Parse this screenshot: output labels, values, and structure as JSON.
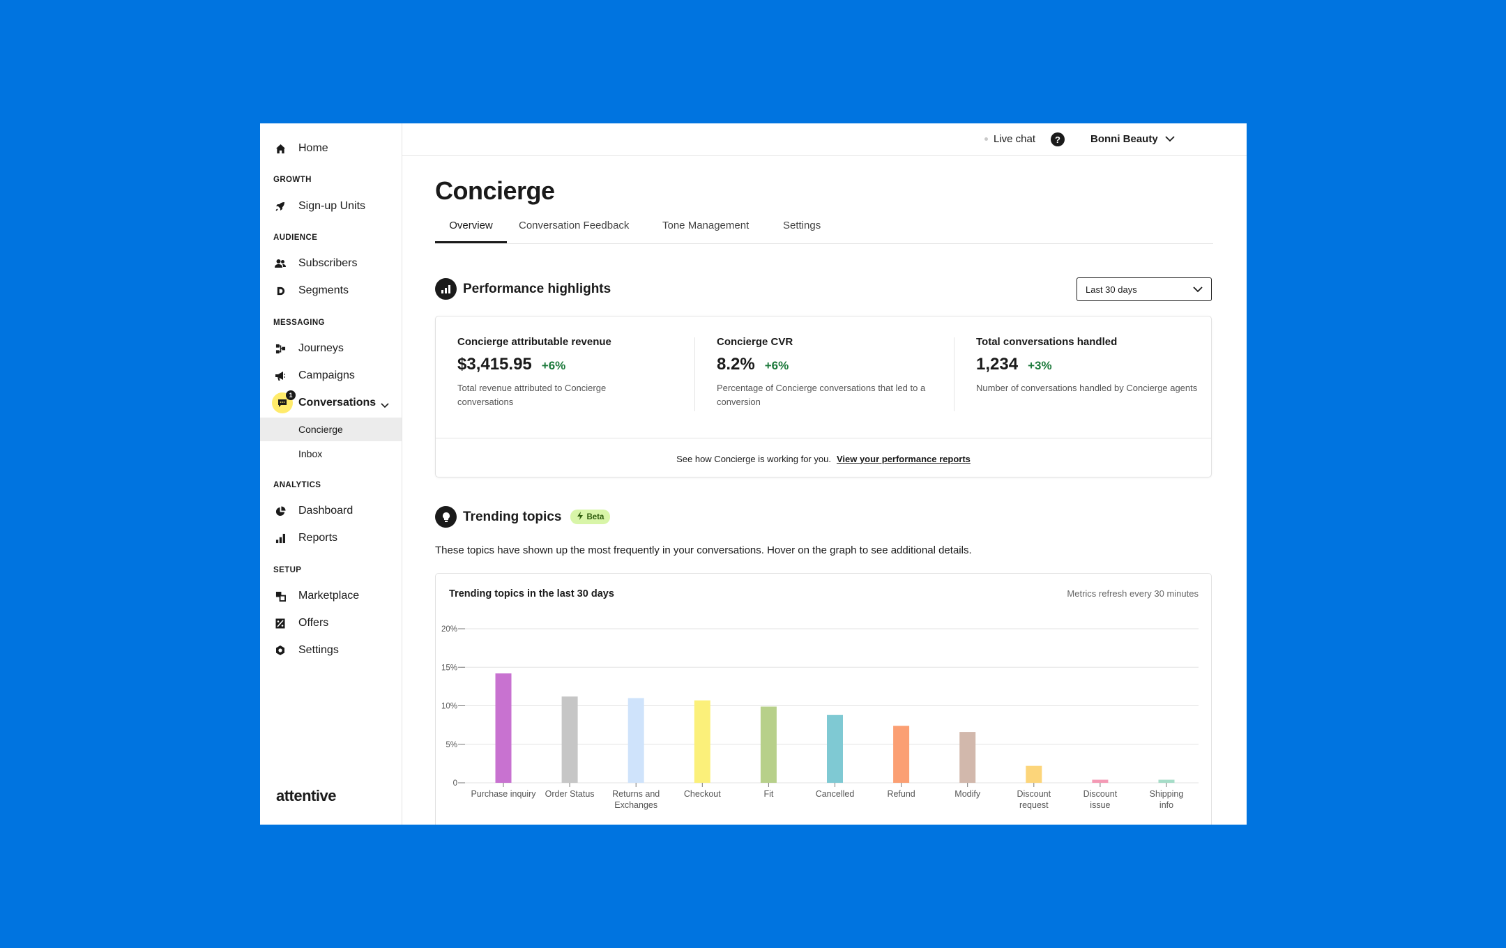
{
  "sidebar": {
    "home": "Home",
    "sections": {
      "growth": "GROWTH",
      "audience": "AUDIENCE",
      "messaging": "MESSAGING",
      "analytics": "ANALYTICS",
      "setup": "SETUP"
    },
    "items": {
      "signup_units": "Sign-up Units",
      "subscribers": "Subscribers",
      "segments": "Segments",
      "journeys": "Journeys",
      "campaigns": "Campaigns",
      "conversations": "Conversations",
      "conversations_badge": "1",
      "concierge": "Concierge",
      "inbox": "Inbox",
      "dashboard": "Dashboard",
      "reports": "Reports",
      "marketplace": "Marketplace",
      "offers": "Offers",
      "settings": "Settings"
    },
    "logo": "attentive"
  },
  "topbar": {
    "live_chat": "Live chat",
    "help": "?",
    "account": "Bonni Beauty"
  },
  "page": {
    "title": "Concierge",
    "tabs": [
      "Overview",
      "Conversation Feedback",
      "Tone Management",
      "Settings"
    ]
  },
  "performance": {
    "title": "Performance highlights",
    "range": "Last 30 days",
    "metrics": [
      {
        "label": "Concierge attributable revenue",
        "value": "$3,415.95",
        "delta": "+6%",
        "desc": "Total revenue attributed to Concierge conversations"
      },
      {
        "label": "Concierge CVR",
        "value": "8.2%",
        "delta": "+6%",
        "desc": "Percentage of Concierge conversations that led to a conversion"
      },
      {
        "label": "Total conversations handled",
        "value": "1,234",
        "delta": "+3%",
        "desc": "Number of conversations handled by Concierge agents"
      }
    ],
    "footer_text": "See how Concierge is working for you.",
    "footer_link": "View your performance reports"
  },
  "trending": {
    "title": "Trending topics",
    "badge": "Beta",
    "description": "These topics have shown up the most frequently in your conversations. Hover on the graph to see additional details.",
    "chart_title": "Trending topics in the last 30 days",
    "chart_note": "Metrics refresh every 30 minutes"
  },
  "chart_data": {
    "type": "bar",
    "categories": [
      "Purchase inquiry",
      "Order Status",
      "Returns and Exchanges",
      "Checkout",
      "Fit",
      "Cancelled",
      "Refund",
      "Modify",
      "Discount request",
      "Discount issue",
      "Shipping info"
    ],
    "values": [
      14.2,
      11.2,
      11.0,
      10.7,
      9.9,
      8.8,
      7.4,
      6.6,
      2.2,
      0.4,
      0.4
    ],
    "colors": [
      "#C872D0",
      "#C6C6C6",
      "#CFE3FB",
      "#FBF07A",
      "#B7D08A",
      "#7FC9D3",
      "#FB9F73",
      "#D2B8AC",
      "#FCD57A",
      "#F49AB5",
      "#A6DDC8"
    ],
    "ylim": [
      0,
      20
    ],
    "yticks": [
      "0",
      "5%",
      "10%",
      "15%",
      "20%"
    ],
    "grid": true
  }
}
